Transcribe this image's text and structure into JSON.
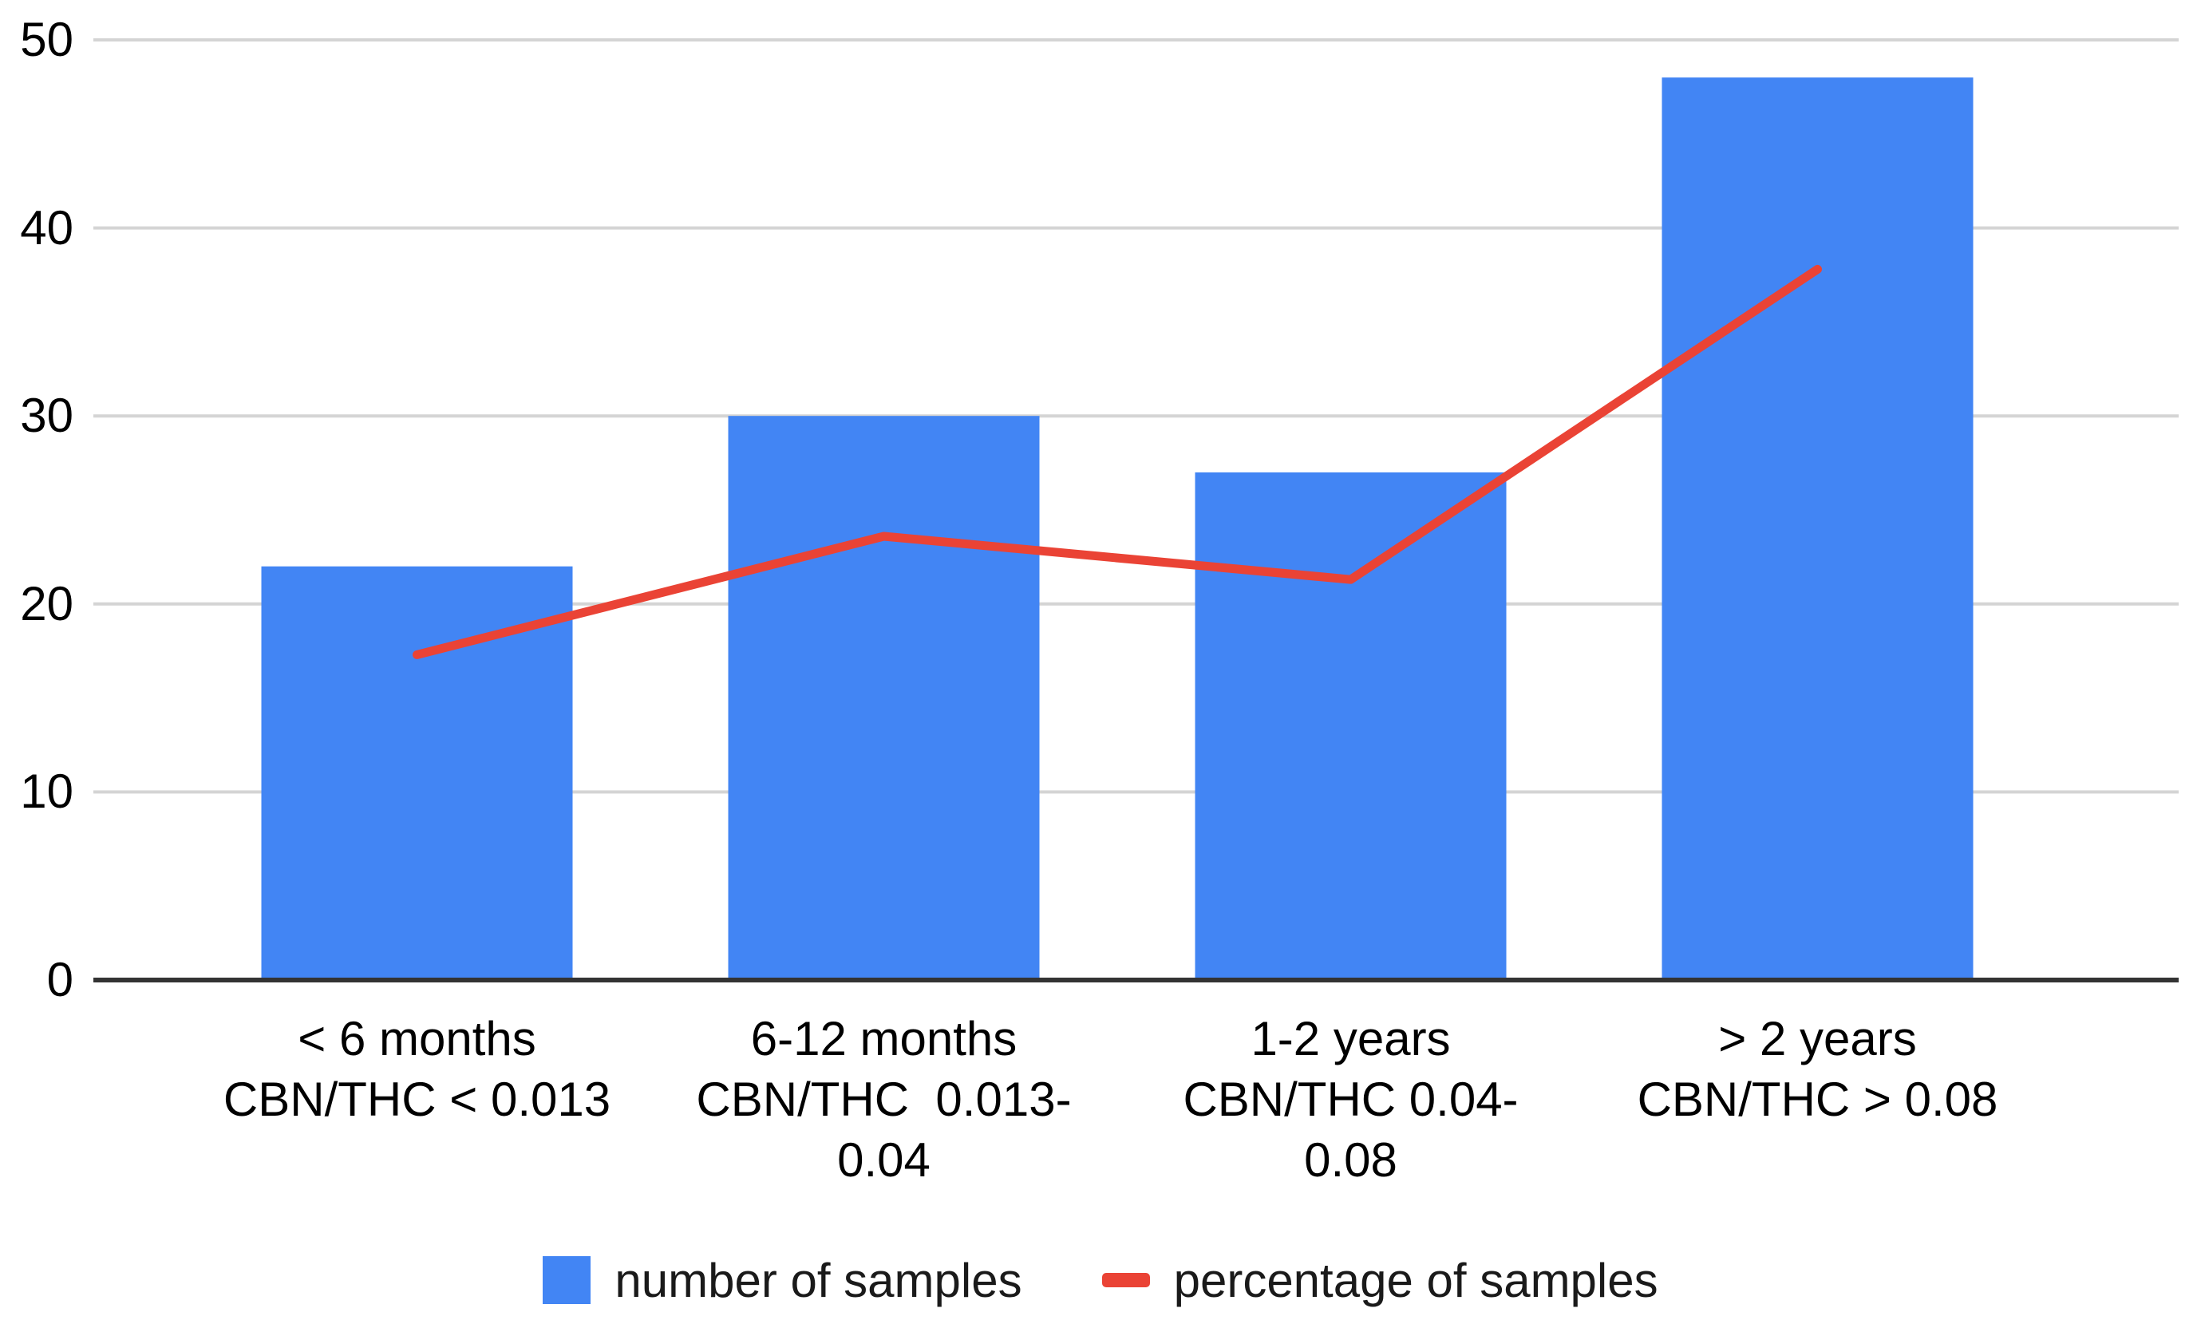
{
  "chart_data": {
    "type": "combo",
    "title": "",
    "xlabel": "",
    "ylabel": "",
    "categories": [
      "< 6 months\nCBN/THC < 0.013",
      "6-12 months\nCBN/THC  0.013-\n0.04",
      "1-2 years\nCBN/THC 0.04-\n0.08",
      "> 2 years\nCBN/THC > 0.08"
    ],
    "series": [
      {
        "name": "number of samples",
        "type": "bar",
        "color": "#4285F4",
        "values": [
          22,
          30,
          27,
          48
        ]
      },
      {
        "name": "percentage of samples",
        "type": "line",
        "color": "#EA4335",
        "values": [
          17.3,
          23.6,
          21.3,
          37.8
        ]
      }
    ],
    "ylim": [
      0,
      50
    ],
    "yticks": [
      0,
      10,
      20,
      30,
      40,
      50
    ],
    "grid": true,
    "legend_position": "bottom"
  },
  "colors": {
    "bar": "#4285F4",
    "line": "#EA4335",
    "gridline": "#D4D4D4",
    "axis_line": "#333333",
    "text": "#000000"
  }
}
